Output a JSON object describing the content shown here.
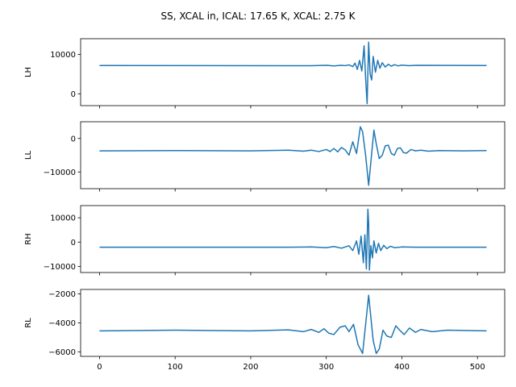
{
  "title": "SS, XCAL in, ICAL: 17.65 K, XCAL: 2.75 K",
  "line_color": "#1f77b4",
  "chart_data": [
    {
      "type": "line",
      "ylabel": "LH",
      "xlim": [
        -25,
        536
      ],
      "ylim": [
        -3000,
        14000
      ],
      "yticks": [
        0,
        10000
      ],
      "xticks": [
        0,
        100,
        200,
        300,
        400,
        500
      ],
      "xtick_labels_visible": false,
      "series": [
        {
          "x": [
            0,
            250,
            280,
            300,
            310,
            320,
            325,
            330,
            335,
            338,
            341,
            344,
            347,
            350,
            352,
            354,
            356,
            358,
            360,
            362,
            365,
            368,
            371,
            374,
            378,
            382,
            386,
            390,
            395,
            400,
            410,
            420,
            512
          ],
          "values": [
            7200,
            7150,
            7150,
            7250,
            7100,
            7250,
            7150,
            7350,
            6900,
            7800,
            6200,
            8500,
            5800,
            12200,
            4000,
            -2500,
            13100,
            5000,
            3500,
            9500,
            5500,
            8500,
            6500,
            7900,
            6800,
            7500,
            7000,
            7400,
            7100,
            7300,
            7150,
            7250,
            7200
          ]
        }
      ]
    },
    {
      "type": "line",
      "ylabel": "LL",
      "xlim": [
        -25,
        536
      ],
      "ylim": [
        -15000,
        5000
      ],
      "yticks": [
        -10000,
        0
      ],
      "xticks": [
        0,
        100,
        200,
        300,
        400,
        500
      ],
      "xtick_labels_visible": false,
      "series": [
        {
          "x": [
            0,
            100,
            200,
            250,
            270,
            280,
            290,
            300,
            305,
            310,
            315,
            320,
            325,
            330,
            335,
            340,
            345,
            348,
            352,
            356,
            360,
            363,
            366,
            370,
            374,
            378,
            382,
            386,
            390,
            394,
            398,
            402,
            406,
            412,
            418,
            425,
            435,
            450,
            480,
            512
          ],
          "values": [
            -3700,
            -3600,
            -3700,
            -3500,
            -3800,
            -3500,
            -3900,
            -3300,
            -3900,
            -3000,
            -4000,
            -2700,
            -3400,
            -5000,
            -1000,
            -4500,
            3500,
            2000,
            -5000,
            -14000,
            -4500,
            2500,
            -1500,
            -6000,
            -5000,
            -2200,
            -2000,
            -4500,
            -5000,
            -3000,
            -2800,
            -4200,
            -4400,
            -3300,
            -3700,
            -3500,
            -3800,
            -3600,
            -3700,
            -3600
          ]
        }
      ]
    },
    {
      "type": "line",
      "ylabel": "RH",
      "xlim": [
        -25,
        536
      ],
      "ylim": [
        -12500,
        15000
      ],
      "yticks": [
        -10000,
        0,
        10000
      ],
      "xticks": [
        0,
        100,
        200,
        300,
        400,
        500
      ],
      "xtick_labels_visible": false,
      "series": [
        {
          "x": [
            0,
            250,
            280,
            300,
            310,
            320,
            330,
            335,
            340,
            343,
            346,
            349,
            351,
            353,
            355,
            356,
            357,
            359,
            361,
            363,
            366,
            369,
            372,
            376,
            380,
            385,
            390,
            400,
            420,
            512
          ],
          "values": [
            -2100,
            -2100,
            -2000,
            -2300,
            -1800,
            -2500,
            -1500,
            -3500,
            500,
            -5000,
            2500,
            -8500,
            3000,
            -11000,
            13500,
            8000,
            -11500,
            -1500,
            -6500,
            500,
            -4500,
            -500,
            -3500,
            -1300,
            -2700,
            -1700,
            -2300,
            -2000,
            -2100,
            -2100
          ]
        }
      ]
    },
    {
      "type": "line",
      "ylabel": "RL",
      "xlim": [
        -25,
        536
      ],
      "ylim": [
        -6300,
        -1700
      ],
      "yticks": [
        -6000,
        -4000,
        -2000
      ],
      "xticks": [
        0,
        100,
        200,
        300,
        400,
        500
      ],
      "xtick_labels_visible": true,
      "series": [
        {
          "x": [
            0,
            100,
            200,
            250,
            270,
            280,
            290,
            297,
            303,
            310,
            318,
            325,
            330,
            336,
            342,
            348,
            356,
            362,
            366,
            370,
            375,
            380,
            386,
            392,
            397,
            403,
            410,
            418,
            425,
            440,
            460,
            512
          ],
          "values": [
            -4550,
            -4500,
            -4550,
            -4480,
            -4600,
            -4450,
            -4650,
            -4400,
            -4700,
            -4800,
            -4300,
            -4200,
            -4600,
            -4100,
            -5500,
            -6100,
            -2100,
            -5200,
            -6100,
            -5800,
            -4500,
            -4900,
            -5000,
            -4200,
            -4500,
            -4800,
            -4350,
            -4650,
            -4450,
            -4600,
            -4500,
            -4550
          ]
        }
      ]
    }
  ]
}
